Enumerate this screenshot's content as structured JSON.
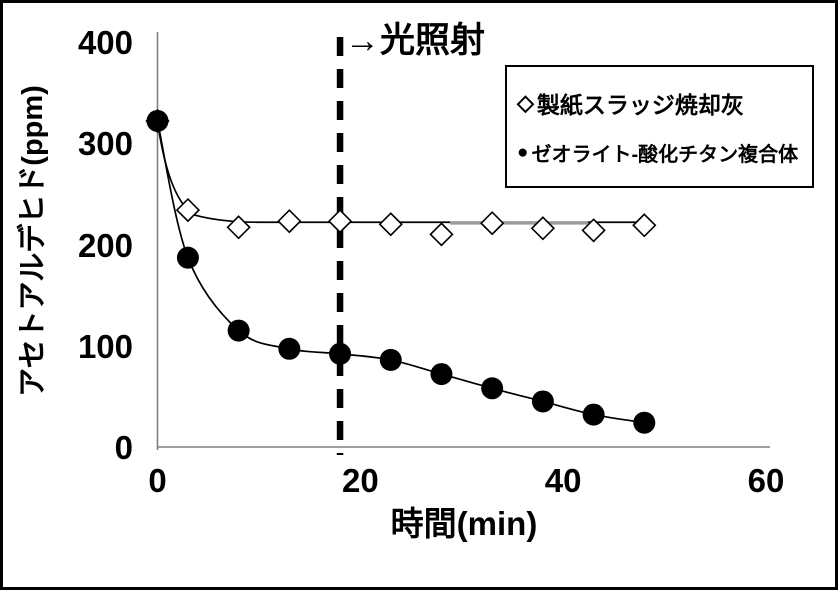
{
  "colors": {
    "series": "#000000",
    "axis_line": "#808080",
    "background": "#ffffff",
    "frame_border": "#000000",
    "trend_overlay_gray": "#9b9b9b"
  },
  "legend": {
    "items": [
      {
        "symbol": "◇",
        "label": "製紙スラッジ焼却灰"
      },
      {
        "symbol": "●",
        "label": "ゼオライト-酸化チタン複合体"
      }
    ]
  },
  "chart_data": {
    "type": "line",
    "title": "",
    "xlabel": "時間(min)",
    "ylabel": "アセトアルデヒド(ppm)",
    "xlim": [
      0,
      60
    ],
    "ylim": [
      0,
      400
    ],
    "xticks": [
      0,
      20,
      40,
      60
    ],
    "yticks": [
      0,
      100,
      200,
      300,
      400
    ],
    "grid": false,
    "legend_position": "top-right",
    "annotation": {
      "text": "→光照射",
      "x": 18
    },
    "event_line": {
      "x": 18,
      "style": "dashed-vertical"
    },
    "x": [
      0,
      3,
      8,
      13,
      18,
      23,
      28,
      33,
      38,
      43,
      48
    ],
    "series": [
      {
        "name": "製紙スラッジ焼却灰",
        "marker": "open-diamond",
        "values": [
          322,
          234,
          217,
          223,
          223,
          220,
          210,
          221,
          216,
          214,
          219
        ],
        "line_level_after_drop": 222
      },
      {
        "name": "ゼオライト-酸化チタン複合体",
        "marker": "filled-circle",
        "values": [
          322,
          187,
          115,
          97,
          92,
          86,
          72,
          58,
          45,
          32,
          24
        ]
      }
    ]
  }
}
